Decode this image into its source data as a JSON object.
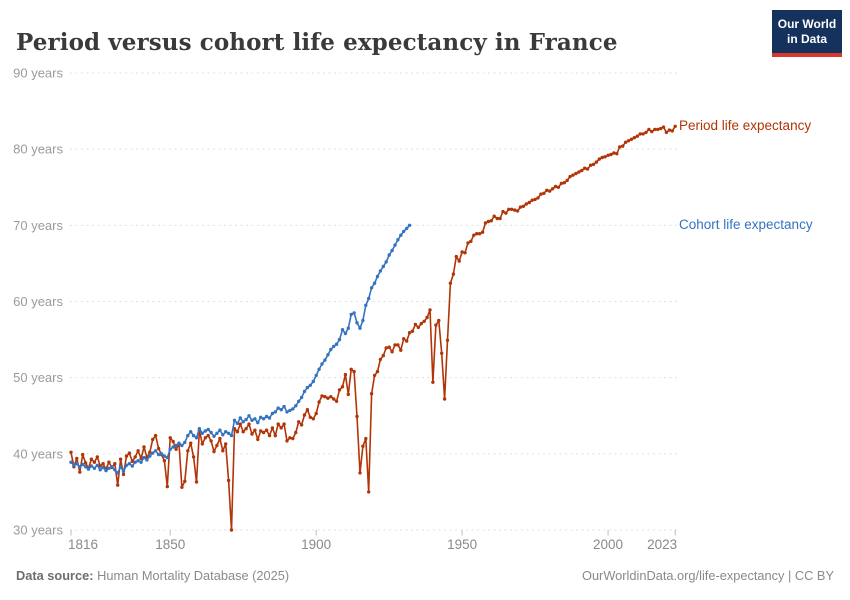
{
  "header": {
    "title": "Period versus cohort life expectancy in France",
    "logo": {
      "line1": "Our World",
      "line2": "in Data",
      "bg_color": "#14325c",
      "accent_color": "#d7382d"
    }
  },
  "footer": {
    "source_label": "Data source:",
    "source_value": " Human Mortality Database (2025)",
    "right_text": "OurWorldinData.org/life-expectancy | CC BY"
  },
  "chart_data": {
    "type": "line",
    "title": "Period versus cohort life expectancy in France",
    "xlabel": "",
    "ylabel": "years",
    "xlim": [
      1816,
      2023
    ],
    "ylim": [
      30,
      90
    ],
    "grid": "horizontal-dashed",
    "legend_position": "right-of-line-end",
    "x_ticks": [
      {
        "value": 1816,
        "label": "1816"
      },
      {
        "value": 1850,
        "label": "1850"
      },
      {
        "value": 1900,
        "label": "1900"
      },
      {
        "value": 1950,
        "label": "1950"
      },
      {
        "value": 2000,
        "label": "2000"
      },
      {
        "value": 2023,
        "label": "2023"
      }
    ],
    "y_ticks": [
      {
        "value": 30,
        "label": "30 years"
      },
      {
        "value": 40,
        "label": "40 years"
      },
      {
        "value": 50,
        "label": "50 years"
      },
      {
        "value": 60,
        "label": "60 years"
      },
      {
        "value": 70,
        "label": "70 years"
      },
      {
        "value": 80,
        "label": "80 years"
      },
      {
        "value": 90,
        "label": "90 years"
      }
    ],
    "series": [
      {
        "name": "Period life expectancy",
        "color": "#b13507",
        "start_year": 1816,
        "values": [
          40.2,
          38.3,
          39.4,
          37.6,
          39.9,
          38.8,
          38.1,
          39.3,
          38.9,
          39.6,
          38.4,
          38.7,
          38.0,
          38.9,
          38.2,
          38.7,
          35.9,
          39.3,
          37.3,
          39.7,
          40.1,
          39.0,
          39.6,
          40.4,
          39.4,
          40.9,
          39.5,
          40.2,
          41.9,
          42.4,
          40.7,
          39.9,
          39.1,
          35.7,
          42.1,
          41.6,
          40.6,
          41.3,
          35.6,
          36.4,
          40.4,
          41.4,
          39.6,
          36.3,
          43.1,
          41.3,
          42.1,
          42.4,
          41.7,
          40.3,
          41.1,
          42.0,
          40.4,
          41.3,
          36.5,
          30.0,
          43.3,
          42.9,
          43.9,
          42.9,
          43.3,
          43.9,
          42.6,
          43.1,
          41.9,
          43.0,
          42.8,
          43.1,
          42.4,
          43.4,
          42.4,
          43.9,
          43.4,
          43.9,
          41.7,
          42.1,
          42.0,
          42.8,
          44.2,
          43.8,
          45.1,
          45.8,
          44.8,
          44.6,
          45.3,
          46.8,
          47.6,
          47.5,
          47.3,
          47.5,
          47.2,
          46.9,
          48.4,
          48.8,
          50.4,
          47.8,
          51.1,
          50.8,
          44.9,
          37.5,
          41.0,
          42.0,
          35.0,
          47.9,
          50.3,
          50.8,
          52.4,
          52.9,
          53.9,
          54.0,
          53.4,
          54.3,
          54.3,
          53.6,
          55.1,
          54.8,
          55.9,
          56.1,
          57.0,
          56.6,
          57.1,
          57.4,
          57.9,
          58.9,
          49.4,
          56.9,
          57.5,
          53.2,
          47.2,
          54.9,
          62.4,
          63.6,
          65.9,
          65.3,
          66.5,
          66.4,
          67.7,
          67.9,
          68.7,
          68.9,
          68.9,
          69.1,
          70.3,
          70.5,
          70.6,
          71.2,
          70.9,
          70.9,
          71.8,
          71.6,
          72.1,
          72.1,
          72.0,
          71.9,
          72.4,
          72.5,
          72.8,
          73.0,
          73.3,
          73.4,
          73.6,
          74.1,
          74.2,
          74.6,
          74.5,
          74.8,
          75.1,
          75.0,
          75.5,
          75.6,
          75.9,
          76.4,
          76.6,
          76.8,
          77.0,
          77.2,
          77.5,
          77.4,
          77.9,
          78.0,
          78.3,
          78.7,
          78.9,
          79.0,
          79.2,
          79.3,
          79.5,
          79.4,
          80.3,
          80.4,
          80.9,
          81.1,
          81.3,
          81.5,
          81.7,
          82.0,
          82.0,
          82.2,
          82.6,
          82.3,
          82.6,
          82.6,
          82.7,
          82.9,
          82.2,
          82.5,
          82.4,
          83.0
        ]
      },
      {
        "name": "Cohort life expectancy",
        "color": "#3573c0",
        "start_year": 1816,
        "values": [
          38.9,
          38.5,
          38.7,
          38.3,
          38.6,
          38.3,
          38.0,
          38.4,
          38.1,
          38.5,
          37.9,
          38.2,
          37.8,
          38.1,
          38.3,
          37.9,
          37.5,
          38.3,
          37.7,
          38.5,
          38.7,
          38.4,
          38.9,
          39.1,
          38.9,
          39.5,
          39.2,
          39.7,
          40.1,
          40.4,
          39.9,
          40.0,
          39.7,
          39.5,
          40.6,
          40.9,
          41.1,
          41.4,
          41.1,
          41.5,
          42.4,
          42.9,
          42.4,
          42.1,
          43.3,
          42.7,
          43.0,
          43.2,
          42.8,
          42.3,
          42.7,
          43.1,
          42.5,
          42.9,
          42.7,
          42.4,
          44.4,
          44.0,
          44.7,
          44.2,
          44.5,
          45.0,
          44.4,
          44.6,
          44.1,
          44.8,
          44.6,
          44.9,
          44.7,
          45.3,
          45.5,
          46.0,
          45.8,
          46.2,
          45.5,
          45.7,
          45.9,
          46.3,
          46.9,
          47.4,
          48.2,
          48.7,
          49.0,
          49.5,
          50.3,
          51.1,
          51.8,
          52.3,
          53.0,
          53.7,
          54.1,
          54.4,
          55.0,
          56.3,
          55.8,
          56.5,
          58.3,
          58.5,
          57.2,
          56.5,
          57.5,
          59.5,
          60.4,
          61.8,
          62.4,
          63.3,
          64.0,
          64.6,
          65.2,
          66.1,
          66.7,
          67.4,
          68.1,
          68.7,
          69.2,
          69.6,
          70.0
        ]
      }
    ]
  }
}
